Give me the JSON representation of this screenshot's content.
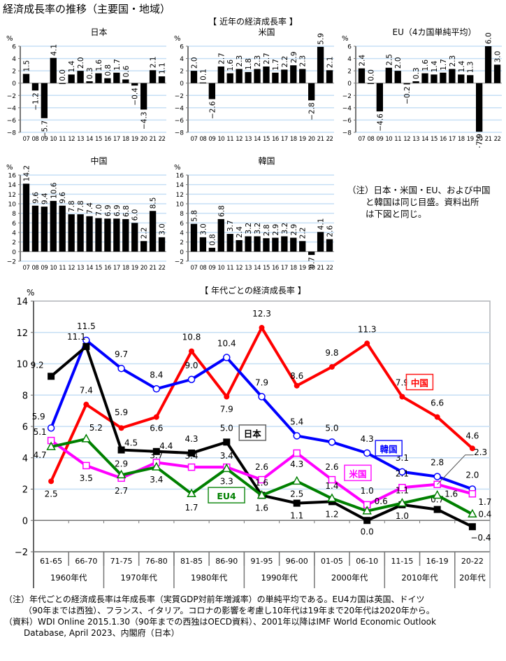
{
  "title": "経済成長率の推移（主要国・地域）",
  "recent_section_title": "【 近年の経済成長率 】",
  "decade_section_title": "【 年代ごとの経済成長率 】",
  "side_note": [
    "（注）日本・米国・EU、および中国",
    "と韓国は同じ目盛。資料出所",
    "は下図と同じ。"
  ],
  "footnotes": [
    "（注）年代ごとの経済成長率は年成長率（実質GDP対前年増減率）の単純平均である。EU4カ国は英国、ドイツ",
    "（90年までは西独）、フランス、イタリア。コロナの影響を考慮し10年代は19年まで20年代は2020年から。",
    "（資料）WDI Online 2015.1.30（90年までの西独はOECD資料）、2001年以降はIMF World Economic Outlook",
    "Database, April 2023、内閣府（日本）"
  ],
  "colors": {
    "bar": "#000000",
    "grid": "#c6dff5",
    "china": "#ff0000",
    "korea": "#0000ff",
    "japan": "#000000",
    "usa": "#ff00ff",
    "eu4": "#008000"
  },
  "chart_data": [
    {
      "type": "bar",
      "title": "日本",
      "ylabel": "%",
      "ylim": [
        -8,
        6
      ],
      "yticks": [
        -8,
        -6,
        -4,
        -2,
        0,
        2,
        4,
        6
      ],
      "categories": [
        "07",
        "08",
        "09",
        "10",
        "11",
        "12",
        "13",
        "14",
        "15",
        "16",
        "17",
        "18",
        "19",
        "20",
        "21",
        "22"
      ],
      "values": [
        1.5,
        -1.2,
        -5.7,
        4.1,
        0.0,
        1.4,
        2.0,
        0.3,
        1.6,
        0.8,
        1.7,
        0.6,
        -0.4,
        -4.3,
        2.1,
        1.1
      ],
      "labels": [
        "1.5",
        "−1.2",
        "−5.7",
        "4.1",
        "0.0",
        "1.4",
        "2.0",
        "0.3",
        "1.6",
        "0.8",
        "1.7",
        "0.6",
        "−0.4",
        "−4.3",
        "2.1",
        "1.1"
      ]
    },
    {
      "type": "bar",
      "title": "米国",
      "ylabel": "%",
      "ylim": [
        -8,
        6
      ],
      "yticks": [
        -8,
        -6,
        -4,
        -2,
        0,
        2,
        4,
        6
      ],
      "categories": [
        "07",
        "08",
        "09",
        "10",
        "11",
        "12",
        "13",
        "14",
        "15",
        "16",
        "17",
        "18",
        "19",
        "20",
        "21",
        "22"
      ],
      "values": [
        2.0,
        0.1,
        -2.6,
        2.7,
        1.6,
        2.3,
        1.8,
        2.3,
        2.7,
        1.7,
        2.2,
        2.9,
        2.3,
        -2.8,
        5.9,
        2.1
      ],
      "labels": [
        "2.0",
        "0.1",
        "−2.6",
        "2.7",
        "1.6",
        "2.3",
        "1.8",
        "2.3",
        "2.7",
        "1.7",
        "2.2",
        "2.9",
        "2.3",
        "−2.8",
        "5.9",
        "2.1"
      ]
    },
    {
      "type": "bar",
      "title": "EU（4カ国単純平均）",
      "ylabel": "%",
      "ylim": [
        -8,
        6
      ],
      "yticks": [
        -8,
        -6,
        -4,
        -2,
        0,
        2,
        4,
        6
      ],
      "categories": [
        "07",
        "08",
        "09",
        "10",
        "11",
        "12",
        "13",
        "14",
        "15",
        "16",
        "17",
        "18",
        "19",
        "20",
        "21",
        "22"
      ],
      "values": [
        2.4,
        0.0,
        -4.6,
        2.5,
        2.0,
        -0.2,
        0.3,
        1.6,
        1.4,
        1.7,
        2.3,
        1.4,
        1.3,
        -7.9,
        6.0,
        3.0
      ],
      "labels": [
        "2.4",
        "0.0",
        "−4.6",
        "2.5",
        "2.0",
        "−0.2",
        "0.3",
        "1.6",
        "1.4",
        "1.7",
        "2.3",
        "1.4",
        "1.3",
        "−7.9",
        "6.0",
        "3.0"
      ]
    },
    {
      "type": "bar",
      "title": "中国",
      "ylabel": "%",
      "ylim": [
        -2,
        16
      ],
      "yticks": [
        -2,
        0,
        2,
        4,
        6,
        8,
        10,
        12,
        14,
        16
      ],
      "categories": [
        "07",
        "08",
        "09",
        "10",
        "11",
        "12",
        "13",
        "14",
        "15",
        "16",
        "17",
        "18",
        "19",
        "20",
        "21",
        "22"
      ],
      "values": [
        14.2,
        9.6,
        9.4,
        10.6,
        9.6,
        7.8,
        7.8,
        7.4,
        7.0,
        6.9,
        6.9,
        6.8,
        6.0,
        2.2,
        8.5,
        3.0
      ],
      "labels": [
        "14.2",
        "9.6",
        "9.4",
        "10.6",
        "9.6",
        "7.8",
        "7.8",
        "7.4",
        "7.0",
        "6.9",
        "6.9",
        "6.8",
        "6.0",
        "2.2",
        "8.5",
        "3.0"
      ]
    },
    {
      "type": "bar",
      "title": "韓国",
      "ylabel": "%",
      "ylim": [
        -2,
        16
      ],
      "yticks": [
        -2,
        0,
        2,
        4,
        6,
        8,
        10,
        12,
        14,
        16
      ],
      "categories": [
        "07",
        "08",
        "09",
        "10",
        "11",
        "12",
        "13",
        "14",
        "15",
        "16",
        "17",
        "18",
        "19",
        "20",
        "21",
        "22"
      ],
      "values": [
        5.8,
        3.0,
        0.8,
        6.8,
        3.7,
        2.4,
        3.2,
        3.2,
        2.8,
        2.9,
        3.2,
        2.9,
        2.2,
        -0.7,
        4.1,
        2.6
      ],
      "labels": [
        "5.8",
        "3.0",
        "0.8",
        "6.8",
        "3.7",
        "2.4",
        "3.2",
        "3.2",
        "2.8",
        "2.9",
        "3.2",
        "2.9",
        "2.2",
        "−0.7",
        "4.1",
        "2.6"
      ]
    },
    {
      "type": "line",
      "title": "【 年代ごとの経済成長率 】",
      "ylabel": "%",
      "ylim": [
        -2,
        14
      ],
      "yticks": [
        -2,
        0,
        2,
        4,
        6,
        8,
        10,
        12,
        14
      ],
      "grid": true,
      "categories": [
        "61-65",
        "66-70",
        "71-75",
        "76-80",
        "81-85",
        "86-90",
        "91-95",
        "96-00",
        "01-05",
        "06-10",
        "11-15",
        "16-19",
        "20-22"
      ],
      "decades": [
        {
          "label": "1960年代",
          "span": 2
        },
        {
          "label": "1970年代",
          "span": 2
        },
        {
          "label": "1980年代",
          "span": 2
        },
        {
          "label": "1990年代",
          "span": 2
        },
        {
          "label": "2000年代",
          "span": 2
        },
        {
          "label": "2010年代",
          "span": 2
        },
        {
          "label": "20年代",
          "span": 1
        }
      ],
      "series": [
        {
          "name": "中国",
          "key": "china",
          "marker": "dot",
          "values": [
            2.5,
            7.4,
            5.9,
            6.6,
            10.8,
            7.9,
            12.3,
            8.6,
            9.8,
            11.3,
            7.9,
            6.6,
            4.6
          ],
          "labels": [
            "2.5",
            "7.4",
            "5.9",
            "6.6",
            "10.8",
            "7.9",
            "12.3",
            "8.6",
            "9.8",
            "11.3",
            "7.9",
            "6.6",
            "4.6"
          ]
        },
        {
          "name": "韓国",
          "key": "korea",
          "marker": "circle",
          "values": [
            5.9,
            11.5,
            9.7,
            8.4,
            9.0,
            10.4,
            7.9,
            5.4,
            5.0,
            4.3,
            3.1,
            2.8,
            2.0
          ],
          "labels": [
            "5.9",
            "11.5",
            "9.7",
            "8.4",
            "9.0",
            "10.4",
            "7.9",
            "5.4",
            "5.0",
            "4.3",
            "3.1",
            "2.8",
            "2.0"
          ]
        },
        {
          "name": "日本",
          "key": "japan",
          "marker": "square-filled",
          "values": [
            9.2,
            11.1,
            4.5,
            4.4,
            4.3,
            5.0,
            1.6,
            1.1,
            1.2,
            0.0,
            1.0,
            0.7,
            -0.4
          ],
          "labels": [
            "9.2",
            "11.1",
            "4.5",
            "4.4",
            "4.3",
            "5.0",
            "1.6",
            "1.1",
            "1.2",
            "0.0",
            "1.0",
            "0.7",
            "−0.4"
          ]
        },
        {
          "name": "米国",
          "key": "usa",
          "marker": "square",
          "values": [
            5.1,
            3.5,
            2.7,
            3.7,
            3.4,
            3.4,
            2.6,
            4.3,
            2.6,
            1.0,
            2.1,
            2.3,
            1.7
          ],
          "labels": [
            "5.1",
            "3.5",
            "2.7",
            "3.7",
            "3.4",
            "3.4",
            "2.6",
            "4.3",
            "2.6",
            "1.0",
            "2.1",
            "2.3",
            "1.7"
          ]
        },
        {
          "name": "EU4",
          "key": "eu4",
          "marker": "triangle",
          "values": [
            4.7,
            5.2,
            2.9,
            3.4,
            1.7,
            3.3,
            1.6,
            2.5,
            1.4,
            0.6,
            1.1,
            1.6,
            0.4
          ],
          "labels": [
            "4.7",
            "5.2",
            "2.9",
            "3.4",
            "1.7",
            "3.3",
            "1.6",
            "2.5",
            "1.4",
            "0.6",
            "1.1",
            "1.6",
            "0.4"
          ]
        }
      ]
    }
  ]
}
